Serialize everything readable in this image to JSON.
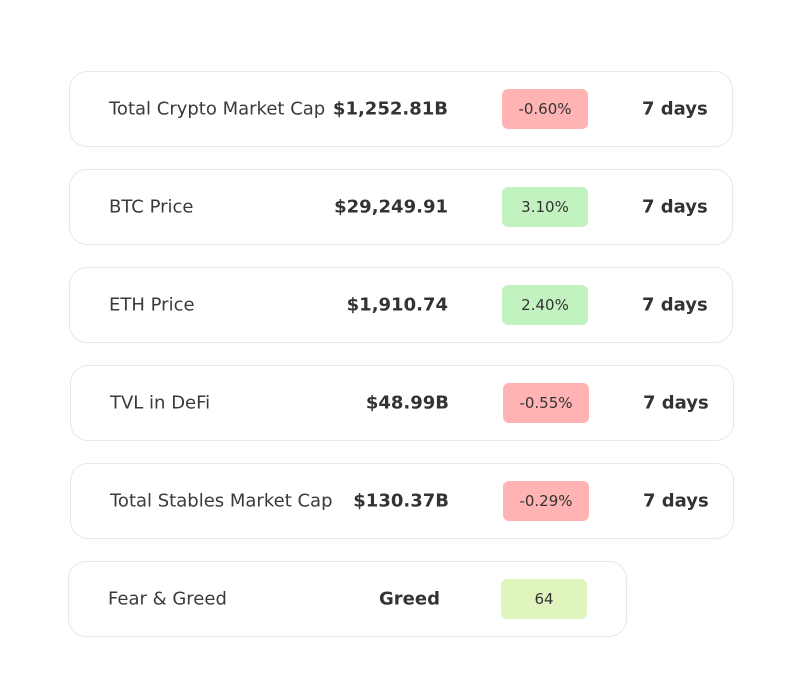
{
  "colors": {
    "negative": "#ffb3b3",
    "positive": "#c2f2bf",
    "neutral": "#dff5bd"
  },
  "metrics": [
    {
      "label": "Total Crypto Market Cap",
      "value": "$1,252.81B",
      "change": "-0.60%",
      "trend": "negative",
      "period": "7 days"
    },
    {
      "label": "BTC Price",
      "value": "$29,249.91",
      "change": "3.10%",
      "trend": "positive",
      "period": "7 days"
    },
    {
      "label": "ETH Price",
      "value": "$1,910.74",
      "change": "2.40%",
      "trend": "positive",
      "period": "7 days"
    },
    {
      "label": "TVL in DeFi",
      "value": "$48.99B",
      "change": "-0.55%",
      "trend": "negative",
      "period": "7 days"
    },
    {
      "label": "Total Stables Market Cap",
      "value": "$130.37B",
      "change": "-0.29%",
      "trend": "negative",
      "period": "7 days"
    }
  ],
  "fear_greed": {
    "label": "Fear & Greed",
    "value": "Greed",
    "score": "64",
    "trend": "neutral"
  }
}
